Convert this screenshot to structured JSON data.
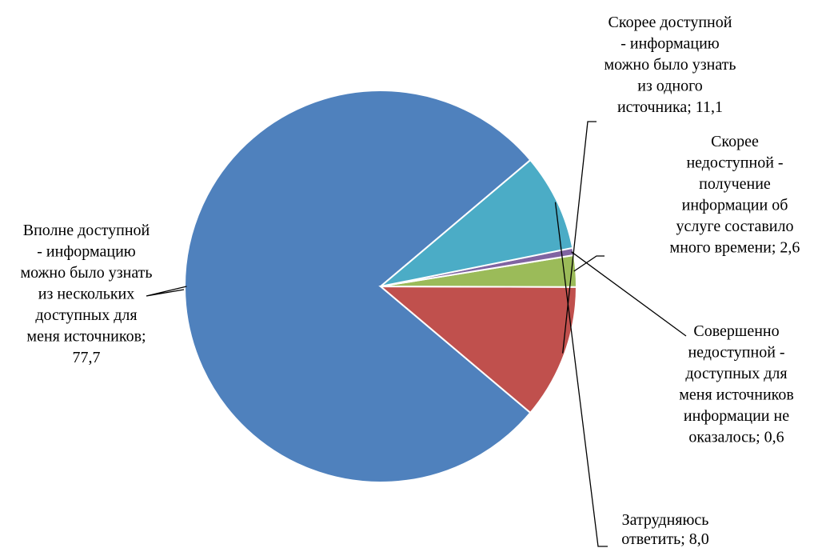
{
  "chart_data": {
    "type": "pie",
    "title": "",
    "slices": [
      {
        "name": "Вполне доступной - информацию можно было узнать из нескольких доступных для меня источников",
        "value": 77.7,
        "value_label": "77,7",
        "color": "#4f81bd",
        "label_lines": [
          "Вполне доступной",
          "- информацию",
          "можно было узнать",
          "из нескольких",
          "доступных для",
          "меня источников;",
          "77,7"
        ]
      },
      {
        "name": "Скорее доступной - информацию можно было узнать из одного источника",
        "value": 11.1,
        "value_label": "11,1",
        "color": "#c0504d",
        "label_lines": [
          "Скорее доступной",
          "- информацию",
          "можно было узнать",
          "из одного",
          "источника; 11,1"
        ]
      },
      {
        "name": "Скорее недоступной - получение информации об услуге составило много времени",
        "value": 2.6,
        "value_label": "2,6",
        "color": "#9bbb59",
        "label_lines": [
          "Скорее",
          "недоступной -",
          "получение",
          "информации об",
          "услуге составило",
          "много времени; 2,6"
        ]
      },
      {
        "name": "Совершенно недоступной - доступных для меня источников информации не оказалось",
        "value": 0.6,
        "value_label": "0,6",
        "color": "#8064a2",
        "label_lines": [
          "Совершенно",
          "недоступной -",
          "доступных для",
          "меня источников",
          "информации не",
          "оказалось; 0,6"
        ]
      },
      {
        "name": "Затрудняюсь ответить",
        "value": 8.0,
        "value_label": "8,0",
        "color": "#4bacc6",
        "label_lines": [
          "Затрудняюсь",
          "ответить; 8,0"
        ]
      }
    ],
    "legend": "none",
    "labels": "outside with leader lines"
  }
}
